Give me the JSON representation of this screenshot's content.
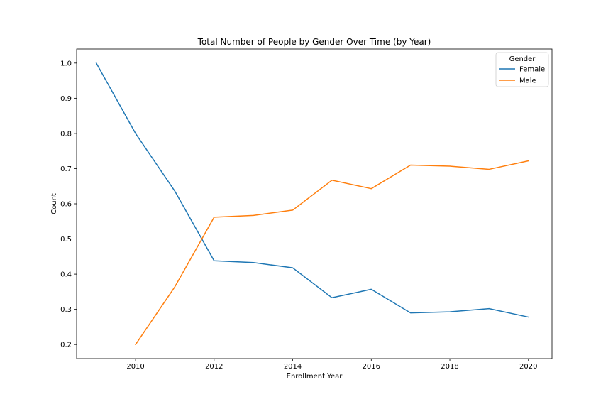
{
  "chart_data": {
    "type": "line",
    "title": "Total Number of People by Gender Over Time (by Year)",
    "xlabel": "Enrollment Year",
    "ylabel": "Count",
    "xlim": [
      2008.5,
      2020.6
    ],
    "ylim": [
      0.16,
      1.04
    ],
    "x_ticks": [
      2010,
      2012,
      2014,
      2016,
      2018,
      2020
    ],
    "y_ticks": [
      0.2,
      0.3,
      0.4,
      0.5,
      0.6,
      0.7,
      0.8,
      0.9,
      1.0
    ],
    "y_tick_labels": [
      "0.2",
      "0.3",
      "0.4",
      "0.5",
      "0.6",
      "0.7",
      "0.8",
      "0.9",
      "1.0"
    ],
    "grid": false,
    "legend": {
      "title": "Gender",
      "placement": "top-right"
    },
    "series": [
      {
        "name": "Female",
        "color": "#1f77b4",
        "x": [
          2009,
          2010,
          2011,
          2012,
          2013,
          2014,
          2015,
          2016,
          2017,
          2018,
          2019,
          2020
        ],
        "values": [
          1.0,
          0.8,
          0.636,
          0.438,
          0.433,
          0.418,
          0.333,
          0.357,
          0.29,
          0.293,
          0.302,
          0.278
        ]
      },
      {
        "name": "Male",
        "color": "#ff7f0e",
        "x": [
          2010,
          2011,
          2012,
          2013,
          2014,
          2015,
          2016,
          2017,
          2018,
          2019,
          2020
        ],
        "values": [
          0.2,
          0.364,
          0.562,
          0.567,
          0.582,
          0.667,
          0.643,
          0.71,
          0.707,
          0.698,
          0.722
        ]
      }
    ]
  }
}
